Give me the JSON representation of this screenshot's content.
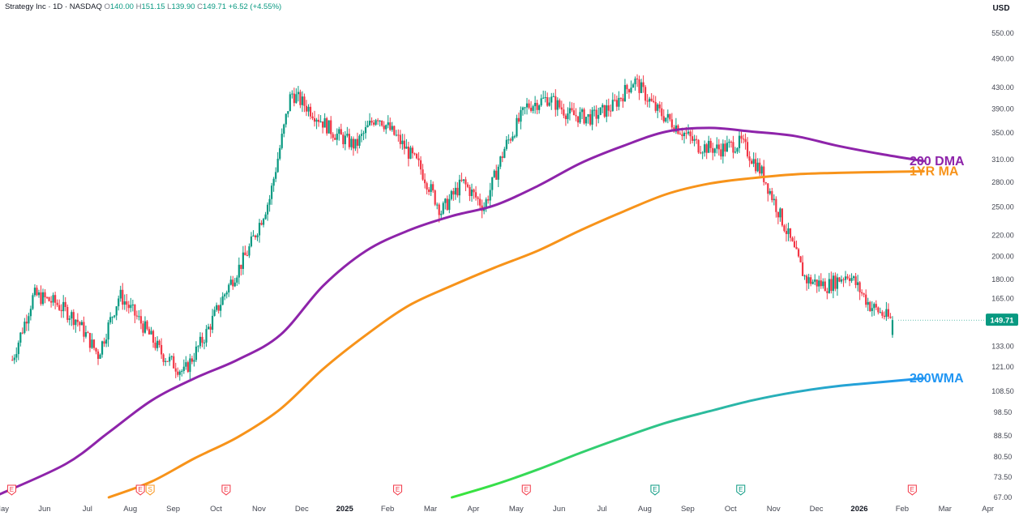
{
  "header": {
    "symbol": "Strategy Inc · 1D · NASDAQ",
    "o_label": "O",
    "o_value": "140.00",
    "h_label": "H",
    "h_value": "151.15",
    "l_label": "L",
    "l_value": "139.90",
    "c_label": "C",
    "c_value": "149.71",
    "change": "+6.52 (+4.55%)"
  },
  "currency_label": "USD",
  "last_price_label": "149.71",
  "colors": {
    "up": "#089981",
    "down": "#f23645",
    "dma200": "#8e24aa",
    "ma1yr": "#f7931a",
    "wma_start": "#39e639",
    "wma_end": "#2196f3",
    "event_earnings": "#f23645",
    "event_dividend": "#f7931a",
    "event_green": "#089981"
  },
  "chart_data": {
    "type": "line",
    "title": "Strategy Inc · 1D · NASDAQ",
    "ylabel": "USD",
    "y_scale": "log",
    "ylim": [
      67,
      600
    ],
    "y_ticks": [
      "550.00",
      "490.00",
      "430.00",
      "390.00",
      "350.00",
      "310.00",
      "280.00",
      "250.00",
      "220.00",
      "200.00",
      "180.00",
      "165.00",
      "133.00",
      "121.00",
      "108.50",
      "98.50",
      "88.50",
      "80.50",
      "73.50",
      "67.00"
    ],
    "x_ticks": [
      "May",
      "Jun",
      "Jul",
      "Aug",
      "Sep",
      "Oct",
      "Nov",
      "Dec",
      "2025",
      "Feb",
      "Mar",
      "Apr",
      "May",
      "Jun",
      "Jul",
      "Aug",
      "Sep",
      "Oct",
      "Nov",
      "Dec",
      "2026",
      "Feb",
      "Mar",
      "Apr"
    ],
    "candles": {
      "note": "daily price path, approximate closes (USD) per month",
      "x": [
        "2024-05",
        "2024-05",
        "2024-06",
        "2024-06",
        "2024-07",
        "2024-07",
        "2024-08",
        "2024-08",
        "2024-09",
        "2024-09",
        "2024-10",
        "2024-10",
        "2024-11",
        "2024-11",
        "2024-12",
        "2024-12",
        "2025-01",
        "2025-01",
        "2025-02",
        "2025-02",
        "2025-03",
        "2025-03",
        "2025-04",
        "2025-04",
        "2025-05",
        "2025-05",
        "2025-06",
        "2025-06",
        "2025-07",
        "2025-07",
        "2025-08",
        "2025-08",
        "2025-09",
        "2025-09",
        "2025-10",
        "2025-10",
        "2025-11",
        "2025-11",
        "2025-12",
        "2025-12",
        "2026-01",
        "2026-01"
      ],
      "close": [
        125,
        168,
        162,
        150,
        128,
        168,
        148,
        128,
        118,
        140,
        172,
        205,
        260,
        420,
        385,
        350,
        330,
        380,
        340,
        300,
        245,
        280,
        250,
        330,
        395,
        410,
        380,
        375,
        395,
        445,
        390,
        360,
        330,
        325,
        335,
        290,
        230,
        180,
        175,
        185,
        160,
        149.71
      ]
    },
    "series": [
      {
        "name": "200 DMA",
        "x": [
          "2024-05",
          "2024-06",
          "2024-07",
          "2024-08",
          "2024-09",
          "2024-10",
          "2024-11",
          "2024-12",
          "2025-01",
          "2025-02",
          "2025-03",
          "2025-04",
          "2025-05",
          "2025-06",
          "2025-07",
          "2025-08",
          "2025-09",
          "2025-10",
          "2025-11",
          "2025-12",
          "2026-01",
          "2026-02"
        ],
        "values": [
          68,
          78,
          90,
          104,
          115,
          125,
          140,
          175,
          205,
          225,
          240,
          252,
          275,
          305,
          330,
          352,
          358,
          352,
          345,
          330,
          318,
          308
        ]
      },
      {
        "name": "1YR MA",
        "x": [
          "2024-07",
          "2024-08",
          "2024-09",
          "2024-10",
          "2024-11",
          "2024-12",
          "2025-01",
          "2025-02",
          "2025-03",
          "2025-04",
          "2025-05",
          "2025-06",
          "2025-07",
          "2025-08",
          "2025-09",
          "2025-10",
          "2025-11",
          "2025-12",
          "2026-01",
          "2026-02"
        ],
        "values": [
          67,
          72,
          80,
          88,
          100,
          120,
          140,
          160,
          175,
          190,
          205,
          225,
          245,
          265,
          278,
          285,
          290,
          292,
          293,
          294
        ]
      },
      {
        "name": "200WMA",
        "x": [
          "2025-03",
          "2025-04",
          "2025-05",
          "2025-06",
          "2025-07",
          "2025-08",
          "2025-09",
          "2025-10",
          "2025-11",
          "2025-12",
          "2026-01",
          "2026-02"
        ],
        "values": [
          67,
          71,
          76,
          82,
          88,
          94,
          99,
          104,
          108,
          111,
          113,
          115
        ]
      }
    ],
    "annotations": [
      "200 DMA",
      "1YR MA",
      "200WMA"
    ],
    "events": [
      {
        "x": "2024-05",
        "label": "E"
      },
      {
        "x": "2024-08",
        "label": "E"
      },
      {
        "x": "2024-08",
        "label": "S"
      },
      {
        "x": "2024-10",
        "label": "E"
      },
      {
        "x": "2025-02",
        "label": "E"
      },
      {
        "x": "2025-05",
        "label": "E"
      },
      {
        "x": "2025-08",
        "label": "E"
      },
      {
        "x": "2025-10",
        "label": "E"
      },
      {
        "x": "2026-02",
        "label": "E"
      }
    ],
    "grid": false,
    "legend": "none"
  }
}
